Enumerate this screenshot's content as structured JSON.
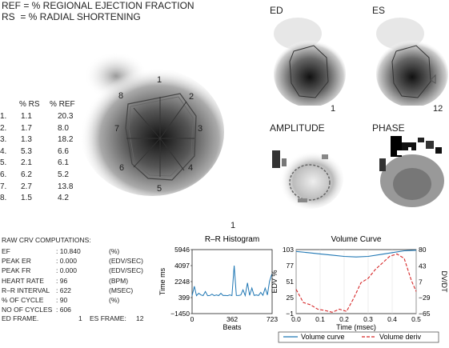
{
  "legend": {
    "ref_line": "REF = % REGIONAL EJECTION FRACTION",
    "rs_line": "RS  = % RADIAL SHORTENING"
  },
  "segment_table": {
    "headers": [
      "% RS",
      "% REF"
    ],
    "rows": [
      {
        "seg": "1.",
        "rs": "1.1",
        "ref": "20.3"
      },
      {
        "seg": "2.",
        "rs": "1.7",
        "ref": "8.0"
      },
      {
        "seg": "3.",
        "rs": "1.3",
        "ref": "18.2"
      },
      {
        "seg": "4.",
        "rs": "5.3",
        "ref": "6.6"
      },
      {
        "seg": "5.",
        "rs": "2.1",
        "ref": "6.1"
      },
      {
        "seg": "6.",
        "rs": "6.2",
        "ref": "5.2"
      },
      {
        "seg": "7.",
        "rs": "2.7",
        "ref": "13.8"
      },
      {
        "seg": "8.",
        "rs": "1.5",
        "ref": "4.2"
      }
    ]
  },
  "ventricle": {
    "segment_labels": [
      "1",
      "2",
      "3",
      "4",
      "5",
      "6",
      "7",
      "8"
    ]
  },
  "panels": {
    "ed": "ED",
    "es": "ES",
    "amplitude": "AMPLITUDE",
    "phase": "PHASE",
    "amp_number": "1",
    "phase_number": "12",
    "top_number": "1"
  },
  "raw": {
    "title": "RAW CRV COMPUTATIONS:",
    "rows": [
      {
        "label": "EF",
        "value": ": 10.840",
        "unit": "(%)"
      },
      {
        "label": "PEAK ER",
        "value": ": 0.000",
        "unit": "(EDV/SEC)"
      },
      {
        "label": "PEAK FR",
        "value": ": 0.000",
        "unit": "(EDV/SEC)"
      },
      {
        "label": "HEART RATE",
        "value": ": 96",
        "unit": "(BPM)"
      },
      {
        "label": "R–R INTERVAL",
        "value": ": 622",
        "unit": "(MSEC)"
      },
      {
        "label": "% OF CYCLE",
        "value": ": 90",
        "unit": "(%)"
      },
      {
        "label": "NO OF CYCLES",
        "value": ": 606",
        "unit": ""
      }
    ],
    "ed_frame_label": "ED FRAME.",
    "ed_frame_value": "1",
    "es_frame_label": "ES FRAME:",
    "es_frame_value": "12"
  },
  "chart_data": [
    {
      "type": "line",
      "title": "R–R Histogram",
      "xlabel": "Beats",
      "ylabel": "Time ms",
      "xticks": [
        "0",
        "362",
        "723"
      ],
      "yticks": [
        "5946",
        "4097",
        "2248",
        "399",
        "−1450"
      ],
      "xlim": [
        0,
        723
      ],
      "ylim": [
        -1450,
        5946
      ],
      "x": [
        0,
        20,
        40,
        60,
        80,
        100,
        120,
        140,
        160,
        180,
        200,
        220,
        240,
        260,
        280,
        300,
        320,
        340,
        360,
        380,
        400,
        420,
        440,
        460,
        480,
        500,
        520,
        540,
        560,
        580,
        600,
        620,
        640,
        660,
        680,
        700,
        720
      ],
      "values": [
        620,
        1700,
        620,
        900,
        700,
        630,
        1100,
        620,
        640,
        800,
        620,
        700,
        630,
        900,
        640,
        650,
        620,
        700,
        630,
        4097,
        650,
        640,
        700,
        1300,
        640,
        2100,
        660,
        1500,
        650,
        700,
        640,
        1000,
        660,
        1500,
        700,
        2300,
        3100
      ]
    },
    {
      "type": "line",
      "title": "Volume Curve",
      "xlabel": "Time (msec)",
      "ylabel": "EDV %",
      "ylabel_right": "DV/DT",
      "xticks": [
        "0.0",
        "0.1",
        "0.2",
        "0.3",
        "0.4",
        "0.5"
      ],
      "yticks_left": [
        "103",
        "77",
        "51",
        "25",
        "−1"
      ],
      "yticks_right": [
        "80",
        "43",
        "7",
        "−29",
        "−65"
      ],
      "xlim": [
        0.0,
        0.5
      ],
      "ylim": [
        -1,
        103
      ],
      "ylim_right": [
        -65,
        80
      ],
      "legend_position": "bottom",
      "series": [
        {
          "name": "Volume curve",
          "color": "#1f77b4",
          "axis": "left",
          "x": [
            0.0,
            0.05,
            0.1,
            0.15,
            0.2,
            0.25,
            0.3,
            0.35,
            0.4,
            0.45,
            0.5
          ],
          "values": [
            100,
            98,
            96,
            94,
            92,
            91,
            92,
            95,
            98,
            101,
            102
          ]
        },
        {
          "name": "Volume deriv",
          "color": "#d62728",
          "axis": "right",
          "x": [
            0.0,
            0.03,
            0.06,
            0.09,
            0.12,
            0.15,
            0.18,
            0.21,
            0.24,
            0.27,
            0.3,
            0.33,
            0.36,
            0.39,
            0.42,
            0.45,
            0.48,
            0.5
          ],
          "values": [
            -10,
            -40,
            -45,
            -55,
            -58,
            -62,
            -55,
            -60,
            -30,
            5,
            15,
            35,
            50,
            65,
            70,
            60,
            10,
            -15
          ]
        }
      ]
    }
  ],
  "colors": {
    "volume_curve": "#1f77b4",
    "volume_deriv": "#d62728",
    "text": "#222222"
  }
}
